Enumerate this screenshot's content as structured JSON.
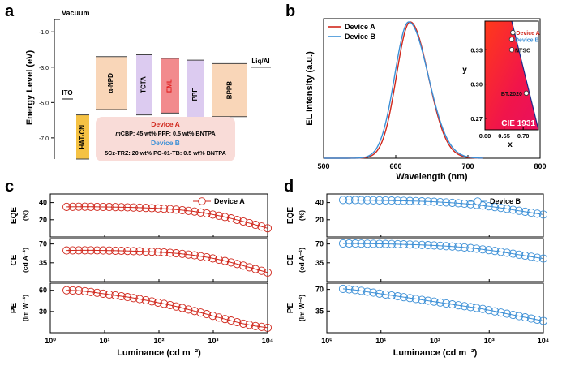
{
  "panels": {
    "a": "a",
    "b": "b",
    "c": "c",
    "d": "d"
  },
  "chart_data": [
    {
      "id": "a",
      "type": "diagram",
      "ylabel": "Energy Level (eV)",
      "ylim": [
        -8.2,
        -0.3
      ],
      "yticks": [
        -1.0,
        -3.0,
        -5.0,
        -7.0
      ],
      "ytick_labels": [
        "-1.0",
        "-3.0",
        "-5.0",
        "-7.0"
      ],
      "vacuum_label": "Vacuum",
      "layers": [
        {
          "name": "ITO",
          "lumo": null,
          "homo": -4.8,
          "color": "#ffffff"
        },
        {
          "name": "HAT-CN",
          "lumo": -5.7,
          "homo": -9.5,
          "color": "#f5c244"
        },
        {
          "name": "α-NPD",
          "lumo": -2.4,
          "homo": -5.4,
          "color": "#f9d6b8"
        },
        {
          "name": "TCTA",
          "lumo": -2.3,
          "homo": -5.7,
          "color": "#dccbf0"
        },
        {
          "name": "EML",
          "lumo": -2.5,
          "homo": -5.6,
          "color": "#f28a8d",
          "label_color": "#e02020"
        },
        {
          "name": "PPF",
          "lumo": -2.6,
          "homo": -6.5,
          "color": "#dccbf0"
        },
        {
          "name": "BPPB",
          "lumo": -2.8,
          "homo": -5.8,
          "color": "#f9d6b8"
        },
        {
          "name": "Liq/Al",
          "lumo": -3.0,
          "homo": null,
          "color": "#ffffff"
        }
      ],
      "legend_box": {
        "device_a_title": "Device A",
        "device_a_prefix": "m",
        "device_a_text": "CBP: 45 wt% PPF: 0.5 wt% BNTPA",
        "device_b_title": "Device B",
        "device_b_text": "5Cz-TRZ: 20 wt% PO-01-TB: 0.5 wt% BNTPA"
      }
    },
    {
      "id": "b",
      "type": "line",
      "xlabel": "Wavelength (nm)",
      "ylabel": "EL Intensity (a.u.)",
      "xlim": [
        500,
        800
      ],
      "xticks": [
        500,
        600,
        700,
        800
      ],
      "series": [
        {
          "name": "Device A",
          "color": "#d0261b",
          "peak": 620,
          "sigma_l": 19,
          "sigma_r": 25
        },
        {
          "name": "Device B",
          "color": "#3b8fd6",
          "peak": 618,
          "sigma_l": 19.5,
          "sigma_r": 27
        }
      ],
      "inset": {
        "title": "CIE 1931",
        "xlabel": "x",
        "ylabel": "y",
        "xlim": [
          0.6,
          0.74
        ],
        "ylim": [
          0.26,
          0.355
        ],
        "xticks": [
          0.6,
          0.65,
          0.7
        ],
        "xtick_labels": [
          "0.60",
          "0.65",
          "0.70"
        ],
        "yticks": [
          0.27,
          0.3,
          0.33
        ],
        "ytick_labels": [
          "0.27",
          "0.30",
          "0.33"
        ],
        "points": [
          {
            "name": "Device A",
            "x": 0.673,
            "y": 0.345,
            "color": "#d0261b"
          },
          {
            "name": "Device B",
            "x": 0.67,
            "y": 0.339,
            "color": "#3b8fd6"
          },
          {
            "name": "NTSC",
            "x": 0.67,
            "y": 0.33,
            "color": "#111111"
          },
          {
            "name": "BT.2020",
            "x": 0.708,
            "y": 0.292,
            "color": "#111111"
          }
        ]
      }
    },
    {
      "id": "c",
      "type": "scatter",
      "xscale": "log",
      "xlabel": "Luminance (cd m⁻²)",
      "xlim": [
        1,
        10000
      ],
      "xtick_labels": [
        "10⁰",
        "10¹",
        "10²",
        "10³",
        "10⁴"
      ],
      "color": "#d0261b",
      "legend": "Device A",
      "rows": [
        {
          "ylabel": "EQE",
          "unit": "(%)",
          "ylim": [
            0,
            50
          ],
          "yticks": [
            20,
            40
          ],
          "values": [
            35,
            35.2,
            35.1,
            34.9,
            34.7,
            34.4,
            34.0,
            33.4,
            32.6,
            31.5,
            29.9,
            27.8,
            25.1,
            21.9,
            18.2,
            14.2,
            10.1
          ]
        },
        {
          "ylabel": "CE",
          "unit": "(cd A⁻¹)",
          "ylim": [
            0,
            80
          ],
          "yticks": [
            35,
            70
          ],
          "values": [
            58,
            58.3,
            58.2,
            57.9,
            57.5,
            57.0,
            56.3,
            55.3,
            54.0,
            52.1,
            49.5,
            46.0,
            41.6,
            36.2,
            30.1,
            23.5,
            16.8
          ]
        },
        {
          "ylabel": "PE",
          "unit": "(lm W⁻¹)",
          "ylim": [
            0,
            70
          ],
          "yticks": [
            30,
            60
          ],
          "values": [
            60,
            59.5,
            57.5,
            55.0,
            52.5,
            50.0,
            47.0,
            43.5,
            40.0,
            36.0,
            31.5,
            27.0,
            22.0,
            17.5,
            13.0,
            9.5,
            7.0
          ]
        }
      ]
    },
    {
      "id": "d",
      "type": "scatter",
      "xscale": "log",
      "xlabel": "Luminance (cd m⁻²)",
      "xlim": [
        1,
        10000
      ],
      "xtick_labels": [
        "10⁰",
        "10¹",
        "10²",
        "10³",
        "10⁴"
      ],
      "color": "#3b8fd6",
      "legend": "Device B",
      "rows": [
        {
          "ylabel": "EQE",
          "unit": "(%)",
          "ylim": [
            0,
            50
          ],
          "yticks": [
            20,
            40
          ],
          "values": [
            43,
            42.9,
            42.7,
            42.5,
            42.3,
            42.0,
            41.6,
            41.1,
            40.4,
            39.5,
            38.3,
            36.8,
            35.0,
            32.9,
            30.6,
            28.3,
            26.0
          ]
        },
        {
          "ylabel": "CE",
          "unit": "(cd A⁻¹)",
          "ylim": [
            0,
            80
          ],
          "yticks": [
            35,
            70
          ],
          "values": [
            71,
            70.8,
            70.5,
            70.2,
            69.8,
            69.2,
            68.5,
            67.6,
            66.4,
            64.9,
            62.9,
            60.4,
            57.4,
            54.0,
            50.3,
            46.5,
            42.8
          ]
        },
        {
          "ylabel": "PE",
          "unit": "(lm W⁻¹)",
          "ylim": [
            0,
            80
          ],
          "yticks": [
            35,
            70
          ],
          "values": [
            71,
            69,
            66,
            63,
            60,
            57,
            54,
            51,
            48,
            45,
            42,
            39,
            35,
            31,
            27,
            23,
            19
          ]
        }
      ]
    }
  ]
}
